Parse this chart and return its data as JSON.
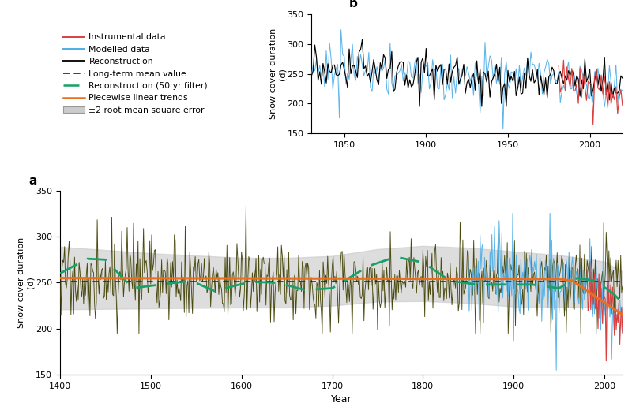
{
  "title_a": "a",
  "title_b": "b",
  "ylabel": "Snow cover duration\n(d)",
  "xlabel": "Year",
  "ylim_a": [
    150,
    350
  ],
  "ylim_b": [
    150,
    350
  ],
  "xlim_a": [
    1400,
    2020
  ],
  "xlim_b": [
    1830,
    2020
  ],
  "yticks_a": [
    150,
    200,
    250,
    300,
    350
  ],
  "yticks_b": [
    150,
    200,
    250,
    300,
    350
  ],
  "xticks_a": [
    1400,
    1500,
    1600,
    1700,
    1800,
    1900,
    2000
  ],
  "xticks_b": [
    1850,
    1900,
    1950,
    2000
  ],
  "mean_value": 251.5,
  "recon_color": "#4a4a10",
  "modelled_color": "#4daee8",
  "instrumental_color": "#d94040",
  "smooth_color": "#18a068",
  "piecewise_color": "#e87020",
  "rmse_color": "#cccccc",
  "rmse_alpha": 0.65,
  "legend_items": [
    [
      "Instrumental data",
      "#d94040",
      "solid"
    ],
    [
      "Modelled data",
      "#4daee8",
      "solid"
    ],
    [
      "Reconstruction",
      "#111111",
      "solid"
    ],
    [
      "Long-term mean value",
      "#222222",
      "dashed"
    ],
    [
      "Reconstruction (50 yr filter)",
      "#18a068",
      "dashed"
    ],
    [
      "Piecewise linear trends",
      "#e87020",
      "solid"
    ],
    [
      "±2 root mean square error",
      "#aaaaaa",
      "solid"
    ]
  ]
}
